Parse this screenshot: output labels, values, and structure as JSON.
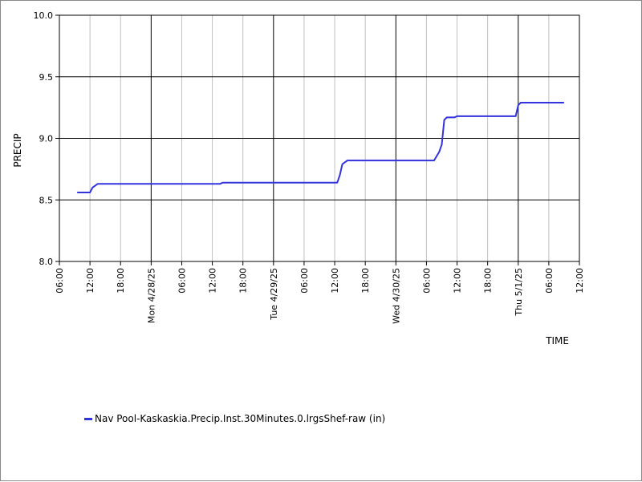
{
  "chart_data": {
    "type": "line",
    "title": "",
    "xlabel": "TIME",
    "ylabel": "PRECIP",
    "ylim": [
      8.0,
      10.0
    ],
    "y_ticks": [
      "8.0",
      "8.5",
      "9.0",
      "9.5",
      "10.0"
    ],
    "xlim": [
      "2025-04-27 06:00",
      "2025-05-01 12:00"
    ],
    "x_ticks": [
      {
        "label": "06:00",
        "at": "2025-04-27 06:00",
        "major": false
      },
      {
        "label": "12:00",
        "at": "2025-04-27 12:00",
        "major": false
      },
      {
        "label": "18:00",
        "at": "2025-04-27 18:00",
        "major": false
      },
      {
        "label": "Mon 4/28/25",
        "at": "2025-04-28 00:00",
        "major": true
      },
      {
        "label": "06:00",
        "at": "2025-04-28 06:00",
        "major": false
      },
      {
        "label": "12:00",
        "at": "2025-04-28 12:00",
        "major": false
      },
      {
        "label": "18:00",
        "at": "2025-04-28 18:00",
        "major": false
      },
      {
        "label": "Tue 4/29/25",
        "at": "2025-04-29 00:00",
        "major": true
      },
      {
        "label": "06:00",
        "at": "2025-04-29 06:00",
        "major": false
      },
      {
        "label": "12:00",
        "at": "2025-04-29 12:00",
        "major": false
      },
      {
        "label": "18:00",
        "at": "2025-04-29 18:00",
        "major": false
      },
      {
        "label": "Wed 4/30/25",
        "at": "2025-04-30 00:00",
        "major": true
      },
      {
        "label": "06:00",
        "at": "2025-04-30 06:00",
        "major": false
      },
      {
        "label": "12:00",
        "at": "2025-04-30 12:00",
        "major": false
      },
      {
        "label": "18:00",
        "at": "2025-04-30 18:00",
        "major": false
      },
      {
        "label": "Thu 5/1/25",
        "at": "2025-05-01 00:00",
        "major": true
      },
      {
        "label": "06:00",
        "at": "2025-05-01 06:00",
        "major": false
      },
      {
        "label": "12:00",
        "at": "2025-05-01 12:00",
        "major": false
      }
    ],
    "grid": true,
    "legend_position": "bottom-left",
    "series": [
      {
        "name": "Nav Pool-Kaskaskia.Precip.Inst.30Minutes.0.lrgsShef-raw (in)",
        "color": "#3333dd",
        "points": [
          {
            "x": "2025-04-27 09:30",
            "y": 8.56
          },
          {
            "x": "2025-04-27 12:00",
            "y": 8.56
          },
          {
            "x": "2025-04-27 12:30",
            "y": 8.6
          },
          {
            "x": "2025-04-27 13:30",
            "y": 8.63
          },
          {
            "x": "2025-04-28 13:30",
            "y": 8.63
          },
          {
            "x": "2025-04-28 14:00",
            "y": 8.64
          },
          {
            "x": "2025-04-29 12:30",
            "y": 8.64
          },
          {
            "x": "2025-04-29 13:00",
            "y": 8.7
          },
          {
            "x": "2025-04-29 13:30",
            "y": 8.79
          },
          {
            "x": "2025-04-29 14:30",
            "y": 8.82
          },
          {
            "x": "2025-04-30 07:30",
            "y": 8.82
          },
          {
            "x": "2025-04-30 08:30",
            "y": 8.89
          },
          {
            "x": "2025-04-30 09:00",
            "y": 8.95
          },
          {
            "x": "2025-04-30 09:30",
            "y": 9.15
          },
          {
            "x": "2025-04-30 10:00",
            "y": 9.17
          },
          {
            "x": "2025-04-30 11:30",
            "y": 9.17
          },
          {
            "x": "2025-04-30 12:00",
            "y": 9.18
          },
          {
            "x": "2025-04-30 23:30",
            "y": 9.18
          },
          {
            "x": "2025-05-01 00:00",
            "y": 9.27
          },
          {
            "x": "2025-05-01 00:30",
            "y": 9.29
          },
          {
            "x": "2025-05-01 09:00",
            "y": 9.29
          }
        ]
      }
    ]
  }
}
